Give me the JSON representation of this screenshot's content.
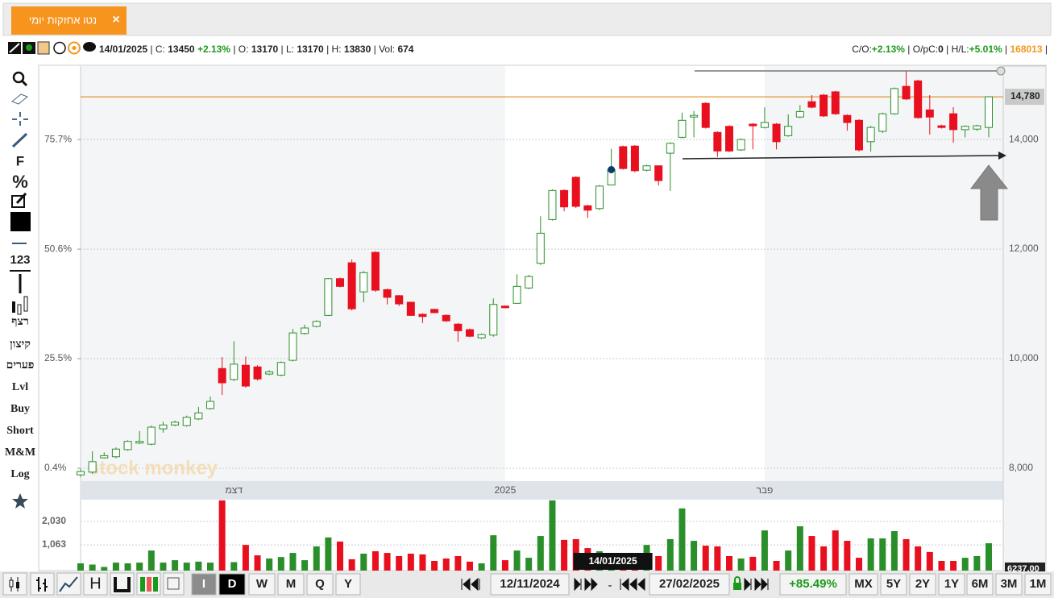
{
  "tab": {
    "title": "נטו אחזקות יומי",
    "close": "×"
  },
  "info": {
    "date": "14/01/2025",
    "separator": "|",
    "close_label": "C:",
    "close": "13450",
    "change": "+2.13%",
    "open_label": "O:",
    "open": "13170",
    "low_label": "L:",
    "low": "13170",
    "high_label": "H:",
    "high": "13830",
    "vol_label": "Vol:",
    "vol": "674"
  },
  "stats": {
    "co_label": "C/O:",
    "co": "+2.13%",
    "opc_label": "O/pC:",
    "opc": "0",
    "hl_label": "H/L:",
    "hl": "+5.01%",
    "id": "168013",
    "separator": "|"
  },
  "left_toolbar": {
    "fib": "F",
    "percent": "%",
    "numbers": "123",
    "sequence": "רצף",
    "extreme": "קיצון",
    "gaps": "פערים",
    "lvl": "Lvl",
    "buy": "Buy",
    "short": "Short",
    "mm": "M&M",
    "log": "Log"
  },
  "watermark": "stock monkey",
  "cursor_date": "14/01/2025",
  "volume_cursor_label": "6237.00",
  "bottom_toolbar": {
    "chart_type": "H",
    "periods": [
      "I",
      "D",
      "W",
      "M",
      "Q",
      "Y"
    ],
    "from": "12/11/2024",
    "dash": "-",
    "to": "27/02/2025",
    "return": "+85.49%",
    "ranges": [
      "MX",
      "5Y",
      "2Y",
      "1Y",
      "6M",
      "3M",
      "1M"
    ]
  },
  "chart_data": {
    "type": "candlestick",
    "categories": [
      null,
      null,
      null,
      null,
      null,
      null,
      null,
      null,
      null,
      null,
      null,
      null,
      null,
      "דצמ",
      null,
      null,
      null,
      null,
      null,
      null,
      null,
      null,
      null,
      null,
      null,
      null,
      null,
      null,
      null,
      null,
      null,
      null,
      null,
      null,
      null,
      null,
      "2025",
      null,
      null,
      null,
      null,
      null,
      null,
      null,
      null,
      null,
      null,
      null,
      null,
      null,
      null,
      null,
      null,
      null,
      null,
      null,
      null,
      null,
      "פבר",
      null,
      null,
      null,
      null,
      null,
      null,
      null,
      null,
      null,
      null,
      null,
      null,
      null,
      null,
      null,
      null,
      null,
      null,
      null
    ],
    "open": [
      7880,
      7930,
      8190,
      8210,
      8340,
      8460,
      8440,
      8720,
      8790,
      8780,
      8900,
      9090,
      9820,
      9620,
      9880,
      9850,
      9720,
      9700,
      9970,
      10460,
      10590,
      10790,
      11460,
      11750,
      11220,
      11940,
      11260,
      11150,
      11030,
      10810,
      10900,
      10790,
      10630,
      10530,
      10380,
      10430,
      10960,
      11010,
      11290,
      11740,
      12540,
      13070,
      13310,
      12790,
      12740,
      13170,
      13870,
      13880,
      13440,
      13520,
      13750,
      14040,
      14410,
      14660,
      14130,
      14240,
      13810,
      14280,
      14220,
      14280,
      14070,
      14410,
      14690,
      14810,
      14870,
      14440,
      14350,
      13960,
      14150,
      14470,
      14970,
      15070,
      14540,
      14250,
      14470,
      14180,
      14190,
      14220
    ],
    "high": [
      7990,
      8310,
      8290,
      8380,
      8510,
      8680,
      8780,
      8850,
      8870,
      8960,
      9120,
      9310,
      10030,
      10320,
      10040,
      9880,
      9790,
      9950,
      10540,
      10620,
      10700,
      11470,
      11480,
      11810,
      11600,
      11960,
      11280,
      11160,
      11040,
      10830,
      10910,
      10810,
      10650,
      10550,
      10460,
      11100,
      10970,
      11540,
      11530,
      12600,
      13090,
      13090,
      13330,
      12810,
      13170,
      13830,
      13890,
      13900,
      13540,
      13530,
      13950,
      14490,
      14520,
      14680,
      14150,
      14260,
      14020,
      14300,
      14590,
      14300,
      14460,
      14630,
      14810,
      14830,
      14890,
      14460,
      14370,
      14250,
      14490,
      14950,
      15250,
      15090,
      14810,
      14270,
      14590,
      14260,
      14270,
      14790
    ],
    "low": [
      7840,
      7900,
      8180,
      8180,
      8320,
      8440,
      8420,
      8650,
      8770,
      8760,
      8880,
      9070,
      9340,
      9590,
      9470,
      9600,
      9700,
      9680,
      9950,
      10440,
      10570,
      10780,
      11300,
      10880,
      11030,
      11220,
      10990,
      10960,
      10780,
      10650,
      10830,
      10670,
      10310,
      10390,
      10360,
      10400,
      10920,
      11000,
      11270,
      11710,
      12520,
      12690,
      12750,
      12570,
      12710,
      13170,
      13450,
      13400,
      13420,
      13160,
      13060,
      14020,
      14040,
      14200,
      13680,
      13770,
      13790,
      13820,
      14200,
      13820,
      14050,
      14390,
      14570,
      14410,
      14450,
      14160,
      13780,
      13780,
      14120,
      14450,
      14720,
      14380,
      14090,
      14200,
      13940,
      14040,
      14160,
      14040
    ],
    "close": [
      7940,
      8120,
      8230,
      8350,
      8490,
      8490,
      8750,
      8790,
      8840,
      8930,
      9010,
      9220,
      9560,
      9900,
      9500,
      9630,
      9760,
      9930,
      10470,
      10560,
      10680,
      11460,
      11320,
      10910,
      11570,
      11250,
      11120,
      11000,
      10790,
      10770,
      10840,
      10690,
      10510,
      10410,
      10440,
      10990,
      10930,
      11320,
      11500,
      12290,
      13070,
      12770,
      12780,
      12710,
      13150,
      13450,
      13470,
      13430,
      13520,
      13250,
      13930,
      14350,
      14440,
      14220,
      13790,
      13790,
      14000,
      14250,
      14310,
      13960,
      14240,
      14510,
      14590,
      14430,
      14470,
      14310,
      13810,
      14220,
      14470,
      14930,
      14740,
      14400,
      14410,
      14220,
      14180,
      14240,
      14250,
      14780
    ],
    "volume": [
      300,
      250,
      150,
      330,
      300,
      330,
      830,
      330,
      430,
      330,
      370,
      330,
      2900,
      350,
      1060,
      630,
      500,
      560,
      730,
      430,
      1000,
      1370,
      1200,
      470,
      700,
      800,
      730,
      600,
      700,
      670,
      400,
      500,
      600,
      370,
      300,
      1460,
      430,
      830,
      530,
      1430,
      2900,
      1270,
      1300,
      930,
      800,
      674,
      500,
      500,
      1060,
      600,
      1300,
      2570,
      1230,
      1030,
      1000,
      600,
      500,
      570,
      1660,
      400,
      830,
      1830,
      1430,
      1000,
      1660,
      1230,
      530,
      1330,
      1330,
      1630,
      1300,
      1000,
      770,
      400,
      400,
      530,
      600,
      1130
    ],
    "up_color": "#2a8f2a",
    "down_color": "#e8101e",
    "ylim": [
      7765,
      15340
    ],
    "yticks": [
      {
        "value": 8000,
        "label": "8,000"
      },
      {
        "value": 10000,
        "label": "10,000"
      },
      {
        "value": 12000,
        "label": "12,000"
      },
      {
        "value": 14000,
        "label": "14,000"
      }
    ],
    "y2lim": [
      -2.55,
      92.52
    ],
    "y2ticks": [
      {
        "value": 0.4,
        "label": "0.4%"
      },
      {
        "value": 25.5,
        "label": "25.5%"
      },
      {
        "value": 50.6,
        "label": "50.6%"
      },
      {
        "value": 75.7,
        "label": "75.7%"
      }
    ],
    "volume_ylim": [
      0,
      2930
    ],
    "volume_yticks": [
      {
        "value": 1063,
        "label": "1,063"
      },
      {
        "value": 2030,
        "label": "2,030"
      }
    ],
    "grid": true,
    "reference_line": {
      "value": 14780,
      "label": "14,780",
      "color": "#e07b00"
    }
  }
}
